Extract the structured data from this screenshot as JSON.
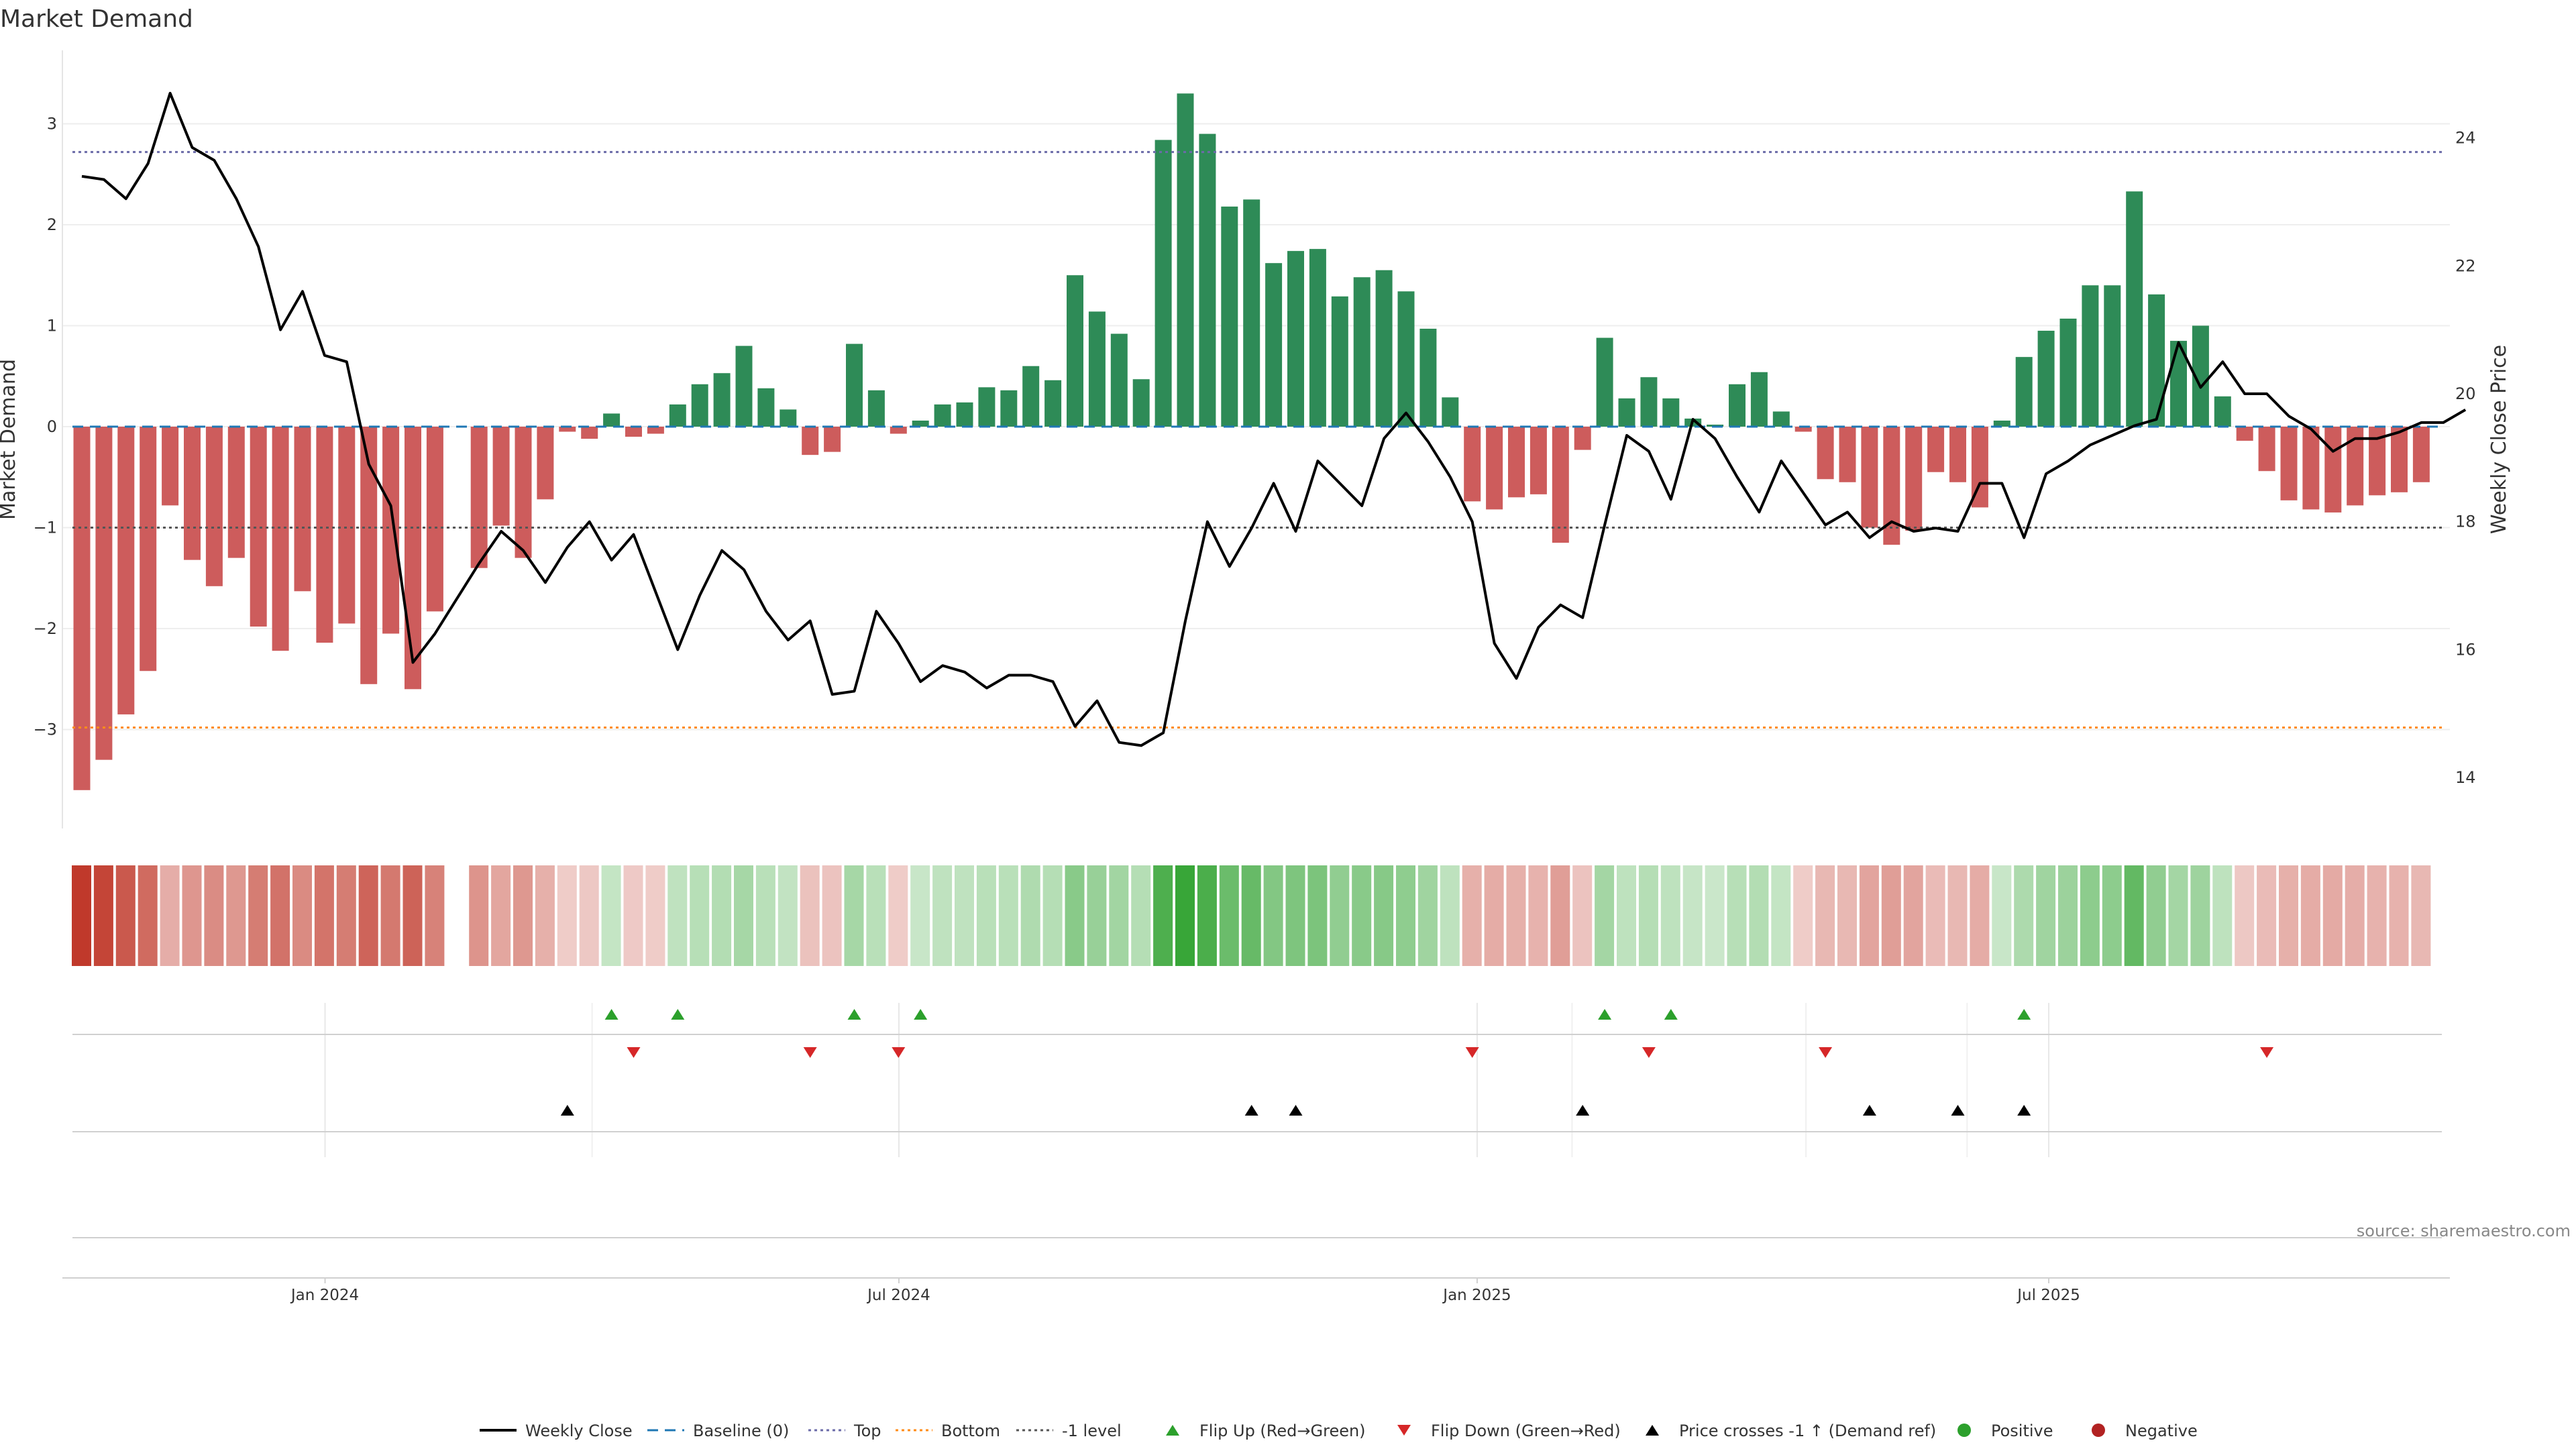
{
  "chart_data": {
    "type": "bar",
    "title": "Market Demand",
    "ylabel": "Market Demand",
    "y2label": "Weekly Close Price",
    "source": "source: sharemaestro.com",
    "ylim": [
      -4.0,
      3.7
    ],
    "y2lim": [
      12.8,
      25.0
    ],
    "yticks": [
      {
        "v": 3,
        "t": "3"
      },
      {
        "v": 2,
        "t": "2"
      },
      {
        "v": 1,
        "t": "1"
      },
      {
        "v": 0,
        "t": "0"
      },
      {
        "v": -1,
        "t": "−1"
      },
      {
        "v": -2,
        "t": "−2"
      },
      {
        "v": -3,
        "t": "−3"
      }
    ],
    "y2ticks": [
      {
        "v": 24,
        "t": "24"
      },
      {
        "v": 22,
        "t": "22"
      },
      {
        "v": 20,
        "t": "20"
      },
      {
        "v": 18,
        "t": "18"
      },
      {
        "v": 16,
        "t": "16"
      },
      {
        "v": 14,
        "t": "14"
      }
    ],
    "xticks": [
      {
        "i": 11.4,
        "t": "Jan 2024"
      },
      {
        "i": 37.4,
        "t": "Jul 2024"
      },
      {
        "i": 63.6,
        "t": "Jan 2025"
      },
      {
        "i": 89.5,
        "t": "Jul 2025"
      }
    ],
    "levels": {
      "top": 2.72,
      "bottom": -2.98,
      "minus_one": -1.0,
      "baseline": 0
    },
    "demand": [
      -3.6,
      -3.3,
      -2.85,
      -2.42,
      -0.78,
      -1.32,
      -1.58,
      -1.3,
      -1.98,
      -2.22,
      -1.63,
      -2.14,
      -1.95,
      -2.55,
      -2.05,
      -2.6,
      -1.83,
      null,
      -1.4,
      -0.98,
      -1.3,
      -0.72,
      -0.05,
      -0.12,
      0.13,
      -0.1,
      -0.07,
      0.22,
      0.42,
      0.53,
      0.8,
      0.38,
      0.17,
      -0.28,
      -0.25,
      0.82,
      0.36,
      -0.07,
      0.06,
      0.22,
      0.24,
      0.39,
      0.36,
      0.6,
      0.46,
      1.5,
      1.14,
      0.92,
      0.47,
      2.84,
      3.3,
      2.9,
      2.18,
      2.25,
      1.62,
      1.74,
      1.76,
      1.29,
      1.48,
      1.55,
      1.34,
      0.97,
      0.29,
      -0.74,
      -0.82,
      -0.7,
      -0.67,
      -1.15,
      -0.23,
      0.88,
      0.28,
      0.49,
      0.28,
      0.08,
      0.02,
      0.42,
      0.54,
      0.15,
      -0.05,
      -0.52,
      -0.55,
      -1.0,
      -1.17,
      -1.03,
      -0.45,
      -0.55,
      -0.8,
      0.06,
      0.69,
      0.95,
      1.07,
      1.4,
      1.4,
      2.33,
      1.31,
      0.85,
      1.0,
      0.3,
      -0.14,
      -0.44,
      -0.73,
      -0.82,
      -0.85,
      -0.78,
      -0.68,
      -0.65,
      -0.55
    ],
    "close": [
      23.4,
      23.35,
      23.05,
      23.6,
      24.7,
      23.85,
      23.65,
      23.05,
      22.3,
      21.0,
      21.6,
      20.6,
      20.5,
      18.9,
      18.25,
      15.8,
      16.25,
      16.8,
      17.35,
      17.85,
      17.55,
      17.05,
      17.6,
      18.0,
      17.4,
      17.8,
      16.9,
      16.0,
      16.85,
      17.55,
      17.25,
      16.6,
      16.15,
      16.45,
      15.3,
      15.35,
      16.6,
      16.1,
      15.5,
      15.75,
      15.65,
      15.4,
      15.6,
      15.6,
      15.5,
      14.8,
      15.2,
      14.55,
      14.5,
      14.7,
      16.45,
      18.0,
      17.3,
      17.9,
      18.6,
      17.85,
      18.95,
      18.6,
      18.25,
      19.3,
      19.7,
      19.25,
      18.7,
      18.0,
      16.1,
      15.55,
      16.35,
      16.7,
      16.5,
      17.95,
      19.35,
      19.1,
      18.35,
      19.6,
      19.3,
      18.7,
      18.15,
      18.95,
      18.45,
      17.95,
      18.15,
      17.75,
      18.0,
      17.85,
      17.9,
      17.85,
      18.6,
      18.6,
      17.75,
      18.75,
      18.95,
      19.2,
      19.35,
      19.5,
      19.6,
      20.8,
      20.1,
      20.5,
      20.0,
      20.0,
      19.65,
      19.45,
      19.1,
      19.3,
      19.3,
      19.4,
      19.55,
      19.55,
      19.75
    ],
    "flip_up": [
      24,
      27,
      35,
      38,
      69,
      72,
      88
    ],
    "flip_down": [
      25,
      33,
      37,
      63,
      71,
      79,
      99
    ],
    "price_cross": [
      22,
      53,
      55,
      68,
      81,
      85,
      88
    ],
    "legend": [
      {
        "label": "Weekly Close",
        "kind": "line",
        "color": "#000000"
      },
      {
        "label": "Baseline (0)",
        "kind": "dash",
        "color": "#1f77b4"
      },
      {
        "label": "Top",
        "kind": "dot",
        "color": "#6b6ba8"
      },
      {
        "label": "Bottom",
        "kind": "dot",
        "color": "#ff8c1a"
      },
      {
        "label": "-1 level",
        "kind": "dot",
        "color": "#555555"
      },
      {
        "label": "Flip Up (Red→Green)",
        "kind": "tri-up",
        "color": "#2ca02c"
      },
      {
        "label": "Flip Down (Green→Red)",
        "kind": "tri-down",
        "color": "#d62728"
      },
      {
        "label": "Price crosses -1 ↑ (Demand ref)",
        "kind": "tri-up",
        "color": "#000000"
      },
      {
        "label": "Positive",
        "kind": "circle",
        "color": "#2ca02c"
      },
      {
        "label": "Negative",
        "kind": "circle",
        "color": "#b22222"
      }
    ],
    "colors": {
      "positive": "#2e8b57",
      "negative": "#cd5c5c",
      "close": "#000000"
    }
  }
}
